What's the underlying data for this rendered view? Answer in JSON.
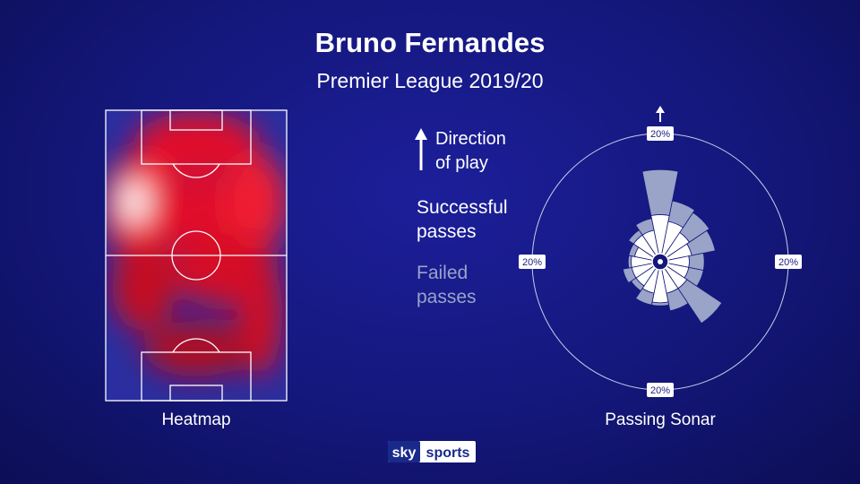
{
  "title": "Bruno Fernandes",
  "subtitle": "Premier League 2019/20",
  "heatmap_label": "Heatmap",
  "direction_label": "Direction of play",
  "logo": {
    "sky": "sky",
    "sports": "sports"
  },
  "chart_data": {
    "type": "sonar",
    "title": "Passing Sonar",
    "categories": [
      null,
      null,
      null,
      null,
      null,
      null,
      null,
      null,
      null,
      null,
      null,
      null,
      null,
      null,
      null,
      null
    ],
    "rlim": [
      0,
      20
    ],
    "rticks": [
      {
        "value": 20,
        "label": "20%"
      }
    ],
    "series": [
      {
        "name": "Successful passes",
        "color": "#ffffff",
        "values": [
          6.5,
          5.5,
          4.5,
          4,
          3.5,
          3.5,
          4,
          4,
          5.5,
          4,
          3.5,
          3.5,
          3.5,
          3,
          4,
          4
        ]
      },
      {
        "name": "Failed passes",
        "color": "#9aa3c8",
        "values": [
          7.5,
          3.5,
          4,
          4,
          2.5,
          2.5,
          7,
          3,
          0.5,
          2,
          1,
          1.5,
          0.5,
          1,
          1,
          2
        ]
      }
    ]
  }
}
